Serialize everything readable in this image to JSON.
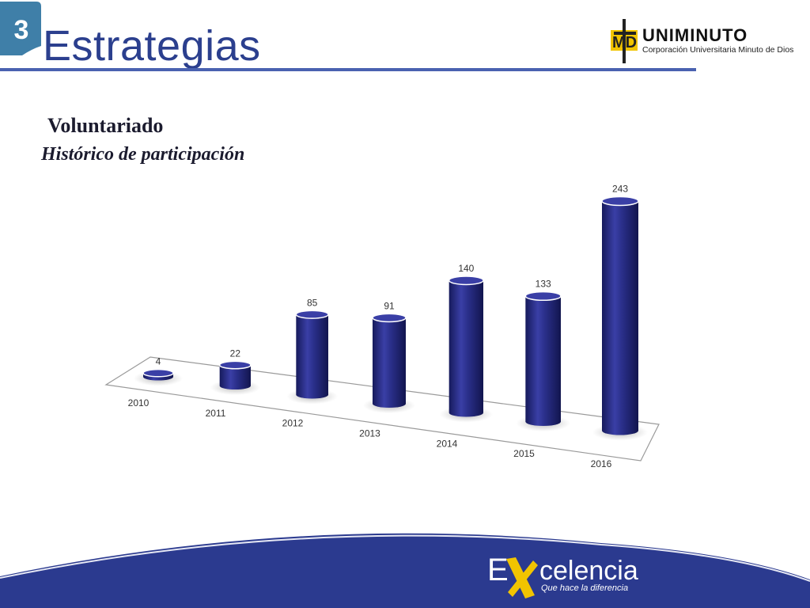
{
  "header": {
    "section_number": "3",
    "title": "Estrategias",
    "logo": {
      "name": "UNIMINUTO",
      "subtitle": "Corporación Universitaria Minuto de Dios",
      "mark": "MD"
    }
  },
  "subtitle": {
    "line1": "Voluntariado",
    "line2": "Histórico de participación"
  },
  "chart_data": {
    "type": "bar",
    "style": "3d-cylinder",
    "categories": [
      "2010",
      "2011",
      "2012",
      "2013",
      "2014",
      "2015",
      "2016"
    ],
    "values": [
      4,
      22,
      85,
      91,
      140,
      133,
      243
    ],
    "data_labels": [
      "4",
      "22",
      "85",
      "91",
      "140",
      "133",
      "243"
    ],
    "title": "",
    "xlabel": "",
    "ylabel": "",
    "grid": false,
    "legend": "none"
  },
  "footer": {
    "brand_e": "E",
    "brand_word": "celencia",
    "tagline": "Que hace la diferencia"
  },
  "colors": {
    "bar": "#2a2f8a",
    "bar_dark": "#161a5c",
    "bar_light": "#5a5fc0",
    "title": "#2b3f8e",
    "accent_teal": "#3f7fa8",
    "footer_blue": "#2b3a8f",
    "yellow": "#f1c400"
  }
}
